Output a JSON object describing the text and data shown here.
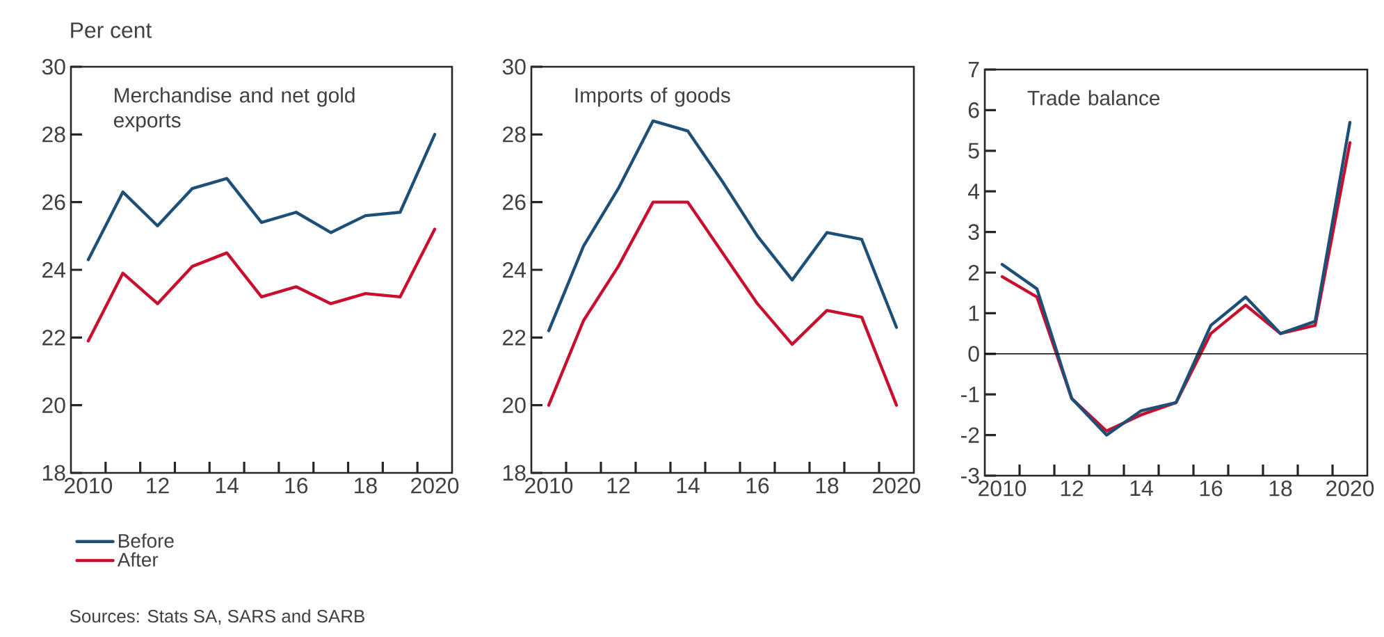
{
  "chart_data": [
    {
      "type": "line",
      "title": "Merchandise and net gold exports",
      "ylabel": "Per cent",
      "x": [
        2010,
        2011,
        2012,
        2013,
        2014,
        2015,
        2016,
        2017,
        2018,
        2019,
        2020
      ],
      "xlim": [
        2009.5,
        2020.5
      ],
      "xticks": [
        2010,
        {
          "value": 2012,
          "label": "12"
        },
        {
          "value": 2014,
          "label": "14"
        },
        {
          "value": 2016,
          "label": "16"
        },
        {
          "value": 2018,
          "label": "18"
        },
        2020,
        {
          "value": 2010.5,
          "label": null
        },
        {
          "value": 2011.5,
          "label": null
        },
        {
          "value": 2012.5,
          "label": null
        },
        {
          "value": 2013.5,
          "label": null
        },
        {
          "value": 2014.5,
          "label": null
        },
        {
          "value": 2015.5,
          "label": null
        },
        {
          "value": 2016.5,
          "label": null
        },
        {
          "value": 2017.5,
          "label": null
        },
        {
          "value": 2018.5,
          "label": null
        },
        {
          "value": 2019.5,
          "label": null
        }
      ],
      "ylim": [
        18,
        30
      ],
      "yticks": [
        18,
        20,
        22,
        24,
        26,
        28,
        30
      ],
      "series": [
        {
          "name": "Before",
          "color": "#1d4f77",
          "values": [
            24.3,
            26.3,
            25.3,
            26.4,
            26.7,
            25.4,
            25.7,
            25.1,
            25.6,
            25.7,
            28.0
          ]
        },
        {
          "name": "After",
          "color": "#c8102e",
          "values": [
            21.9,
            23.9,
            23.0,
            24.1,
            24.5,
            23.2,
            23.5,
            23.0,
            23.3,
            23.2,
            25.2
          ]
        }
      ],
      "legend": "bottom left",
      "annotations": [
        "Sources: Stats SA, SARS and SARB"
      ]
    },
    {
      "type": "line",
      "title": "Imports of goods",
      "x": [
        2010,
        2011,
        2012,
        2013,
        2014,
        2015,
        2016,
        2017,
        2018,
        2019,
        2020
      ],
      "xlim": [
        2009.5,
        2020.5
      ],
      "xticks": [
        2010,
        {
          "value": 2012,
          "label": "12"
        },
        {
          "value": 2014,
          "label": "14"
        },
        {
          "value": 2016,
          "label": "16"
        },
        {
          "value": 2018,
          "label": "18"
        },
        2020,
        {
          "value": 2010.5,
          "label": null
        },
        {
          "value": 2011.5,
          "label": null
        },
        {
          "value": 2012.5,
          "label": null
        },
        {
          "value": 2013.5,
          "label": null
        },
        {
          "value": 2014.5,
          "label": null
        },
        {
          "value": 2015.5,
          "label": null
        },
        {
          "value": 2016.5,
          "label": null
        },
        {
          "value": 2017.5,
          "label": null
        },
        {
          "value": 2018.5,
          "label": null
        },
        {
          "value": 2019.5,
          "label": null
        }
      ],
      "ylim": [
        18,
        30
      ],
      "yticks": [
        18,
        20,
        22,
        24,
        26,
        28,
        30
      ],
      "series": [
        {
          "color": "#1d4f77",
          "values": [
            22.2,
            24.7,
            26.4,
            28.4,
            28.1,
            26.6,
            25.0,
            23.7,
            25.1,
            24.9,
            22.3
          ]
        },
        {
          "color": "#c8102e",
          "values": [
            20.0,
            22.5,
            24.1,
            26.0,
            26.0,
            24.5,
            23.0,
            21.8,
            22.8,
            22.6,
            20.0
          ]
        }
      ]
    },
    {
      "type": "line",
      "title": "Trade balance",
      "x": [
        2010,
        2011,
        2012,
        2013,
        2014,
        2015,
        2016,
        2017,
        2018,
        2019,
        2020
      ],
      "xlim": [
        2009.5,
        2020.5
      ],
      "xticks": [
        2010,
        {
          "value": 2012,
          "label": "12"
        },
        {
          "value": 2014,
          "label": "14"
        },
        {
          "value": 2016,
          "label": "16"
        },
        {
          "value": 2018,
          "label": "18"
        },
        2020,
        {
          "value": 2010.5,
          "label": null
        },
        {
          "value": 2011.5,
          "label": null
        },
        {
          "value": 2012.5,
          "label": null
        },
        {
          "value": 2013.5,
          "label": null
        },
        {
          "value": 2014.5,
          "label": null
        },
        {
          "value": 2015.5,
          "label": null
        },
        {
          "value": 2016.5,
          "label": null
        },
        {
          "value": 2017.5,
          "label": null
        },
        {
          "value": 2018.5,
          "label": null
        },
        {
          "value": 2019.5,
          "label": null
        }
      ],
      "ylim": [
        -3,
        7
      ],
      "yticks": [
        -3,
        -2,
        -1,
        0,
        1,
        2,
        3,
        4,
        5,
        6,
        7
      ],
      "ref_lines": [
        {
          "axis": "y",
          "value": 0,
          "color": "#000000"
        }
      ],
      "series": [
        {
          "color": "#c8102e",
          "values": [
            1.9,
            1.4,
            -1.1,
            -1.9,
            -1.5,
            -1.2,
            0.5,
            1.2,
            0.5,
            0.7,
            5.2
          ]
        },
        {
          "color": "#1d4f77",
          "values": [
            2.2,
            1.6,
            -1.1,
            -2.0,
            -1.4,
            -1.2,
            0.7,
            1.4,
            0.5,
            0.8,
            5.7
          ]
        }
      ]
    }
  ]
}
